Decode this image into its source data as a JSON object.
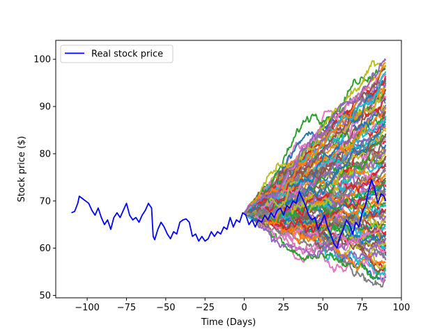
{
  "chart_data": {
    "type": "line",
    "xlabel": "Time (Days)",
    "ylabel": "Stock price ($)",
    "xlim": [
      -120,
      100
    ],
    "ylim": [
      49.5,
      104
    ],
    "xticks": [
      -100,
      -75,
      -50,
      -25,
      0,
      25,
      50,
      75,
      100
    ],
    "xtick_labels": [
      "−100",
      "−75",
      "−50",
      "−25",
      "0",
      "25",
      "50",
      "75",
      "100"
    ],
    "yticks": [
      50,
      60,
      70,
      80,
      90,
      100
    ],
    "ytick_labels": [
      "50",
      "60",
      "70",
      "80",
      "90",
      "100"
    ],
    "grid": false,
    "legend": {
      "placement": "top-left",
      "entries": [
        "Real stock price"
      ]
    },
    "real_series": {
      "name": "Real stock price",
      "color": "#0000ff",
      "points": [
        [
          -110,
          67.5
        ],
        [
          -108,
          67.8
        ],
        [
          -106,
          69.5
        ],
        [
          -105,
          71.0
        ],
        [
          -103,
          70.5
        ],
        [
          -101,
          70.0
        ],
        [
          -99,
          69.5
        ],
        [
          -97,
          68.0
        ],
        [
          -95,
          67.0
        ],
        [
          -93,
          68.5
        ],
        [
          -91,
          66.5
        ],
        [
          -89,
          65.0
        ],
        [
          -87,
          66.0
        ],
        [
          -85,
          64.0
        ],
        [
          -83,
          66.5
        ],
        [
          -81,
          67.5
        ],
        [
          -79,
          66.5
        ],
        [
          -77,
          68.0
        ],
        [
          -75,
          69.5
        ],
        [
          -73,
          67.0
        ],
        [
          -71,
          66.0
        ],
        [
          -69,
          66.5
        ],
        [
          -67,
          65.5
        ],
        [
          -65,
          67.0
        ],
        [
          -63,
          68.0
        ],
        [
          -61,
          69.5
        ],
        [
          -59,
          68.5
        ],
        [
          -58,
          62.5
        ],
        [
          -57,
          61.8
        ],
        [
          -55,
          64.0
        ],
        [
          -53,
          65.5
        ],
        [
          -51,
          64.5
        ],
        [
          -49,
          63.0
        ],
        [
          -47,
          62.0
        ],
        [
          -45,
          63.5
        ],
        [
          -43,
          63.0
        ],
        [
          -41,
          65.5
        ],
        [
          -39,
          66.0
        ],
        [
          -37,
          66.2
        ],
        [
          -35,
          65.5
        ],
        [
          -33,
          62.5
        ],
        [
          -31,
          63.0
        ],
        [
          -29,
          61.5
        ],
        [
          -27,
          62.5
        ],
        [
          -25,
          61.5
        ],
        [
          -23,
          62.0
        ],
        [
          -21,
          63.5
        ],
        [
          -19,
          62.5
        ],
        [
          -17,
          63.5
        ],
        [
          -15,
          63.0
        ],
        [
          -13,
          64.5
        ],
        [
          -11,
          64.0
        ],
        [
          -9,
          66.5
        ],
        [
          -7,
          64.5
        ],
        [
          -5,
          66.0
        ],
        [
          -3,
          65.5
        ],
        [
          -1,
          67.5
        ],
        [
          1,
          67.0
        ],
        [
          3,
          65.0
        ],
        [
          5,
          66.0
        ],
        [
          7,
          64.5
        ],
        [
          9,
          66.0
        ],
        [
          11,
          65.5
        ],
        [
          13,
          67.0
        ],
        [
          15,
          66.0
        ],
        [
          17,
          67.5
        ],
        [
          19,
          66.5
        ],
        [
          21,
          68.0
        ],
        [
          23,
          68.5
        ],
        [
          25,
          67.0
        ],
        [
          27,
          69.0
        ],
        [
          29,
          68.5
        ],
        [
          31,
          70.0
        ],
        [
          33,
          69.5
        ],
        [
          35,
          72.0
        ],
        [
          37,
          70.5
        ],
        [
          39,
          69.0
        ],
        [
          41,
          67.0
        ],
        [
          43,
          66.0
        ],
        [
          45,
          66.5
        ],
        [
          47,
          64.0
        ],
        [
          49,
          65.5
        ],
        [
          51,
          67.0
        ],
        [
          53,
          64.5
        ],
        [
          55,
          63.0
        ],
        [
          57,
          61.0
        ],
        [
          59,
          60.0
        ],
        [
          61,
          62.5
        ],
        [
          63,
          64.0
        ],
        [
          65,
          66.0
        ],
        [
          67,
          65.0
        ],
        [
          69,
          63.0
        ],
        [
          71,
          65.5
        ],
        [
          73,
          64.5
        ],
        [
          75,
          67.5
        ],
        [
          77,
          69.0
        ],
        [
          79,
          72.0
        ],
        [
          81,
          74.5
        ],
        [
          83,
          72.5
        ],
        [
          85,
          69.5
        ],
        [
          87,
          71.5
        ],
        [
          89,
          71.0
        ],
        [
          90,
          70.0
        ]
      ]
    },
    "simulations": {
      "count": 100,
      "start_x": 0,
      "end_x": 90,
      "start_price": 67.5,
      "end_price_range": [
        53,
        100
      ],
      "color_cycle": [
        "#1f77b4",
        "#ff7f0e",
        "#2ca02c",
        "#d62728",
        "#9467bd",
        "#8c564b",
        "#e377c2",
        "#7f7f7f",
        "#bcbd22",
        "#17becf"
      ]
    }
  }
}
